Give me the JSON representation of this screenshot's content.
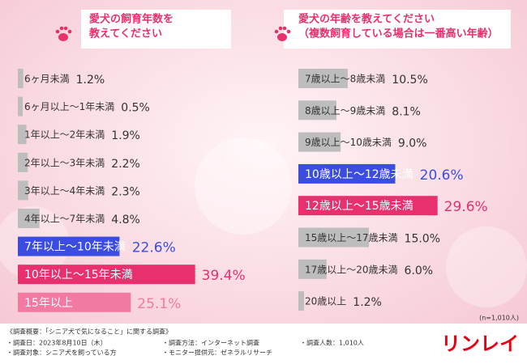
{
  "chart_data": [
    {
      "type": "bar",
      "title": [
        "愛犬の飼育年数を",
        "教えてください"
      ],
      "categories": [
        "6ヶ月未満",
        "6ヶ月以上〜1年未満",
        "1年以上〜2年未満",
        "2年以上〜3年未満",
        "3年以上〜4年未満",
        "4年以上〜7年未満",
        "7年以上〜10年未満",
        "10年以上〜15年未満",
        "15年以上"
      ],
      "values": [
        1.2,
        0.5,
        1.9,
        2.2,
        2.3,
        4.8,
        22.6,
        39.4,
        25.1
      ],
      "value_labels": [
        "1.2%",
        "0.5%",
        "1.9%",
        "2.2%",
        "2.3%",
        "4.8%",
        "22.6%",
        "39.4%",
        "25.1%"
      ],
      "colors": [
        "#bdbdbd",
        "#bdbdbd",
        "#bdbdbd",
        "#bdbdbd",
        "#bdbdbd",
        "#bdbdbd",
        "#3b4de0",
        "#e8306f",
        "#f27aa2"
      ],
      "color": "#bdbdbd"
    },
    {
      "type": "bar",
      "title": [
        "愛犬の年齢を教えてください",
        "（複数飼育している場合は一番高い年齢）"
      ],
      "categories": [
        "7歳以上〜8歳未満",
        "8歳以上〜9歳未満",
        "9歳以上〜10歳未満",
        "10歳以上〜12歳未満",
        "12歳以上〜15歳未満",
        "15歳以上〜17歳未満",
        "17歳以上〜20歳未満",
        "20歳以上"
      ],
      "values": [
        10.5,
        8.1,
        9.0,
        20.6,
        29.6,
        15.0,
        6.0,
        1.2
      ],
      "value_labels": [
        "10.5%",
        "8.1%",
        "9.0%",
        "20.6%",
        "29.6%",
        "15.0%",
        "6.0%",
        "1.2%"
      ],
      "colors": [
        "#bdbdbd",
        "#bdbdbd",
        "#bdbdbd",
        "#3b4de0",
        "#e8306f",
        "#bdbdbd",
        "#bdbdbd",
        "#bdbdbd"
      ],
      "color": "#bdbdbd",
      "note": "(n=1,010人)"
    }
  ],
  "footer": {
    "heading": "《調査概要：「シニア犬で気になること」に関する調査》",
    "items": [
      "・調査日：2023年8月10日（木）",
      "・調査方法：インターネット調査",
      "・調査人数：1,010人",
      "・調査対象：シニア犬を飼っている方",
      "・モニター提供元：ゼネラルリサーチ"
    ]
  },
  "logo": "リンレイ"
}
